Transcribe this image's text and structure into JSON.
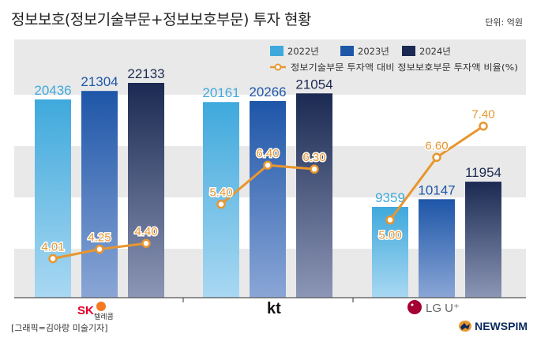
{
  "title": "정보보호(정보기술부문+정보보호부문) 투자 현황",
  "unit": "단위: 억원",
  "credit": "[그래픽=김아랑 미술기자]",
  "brand": "NEWSPIM",
  "colors": {
    "bar_2022": "#3fa9dc",
    "bar_2023": "#1e56a8",
    "bar_2024": "#1b2a52",
    "line": "#e8962f",
    "grid_band": "#e9e9e9"
  },
  "companies": [
    {
      "label": "SK 텔레콤",
      "icon": "sk-telecom-logo"
    },
    {
      "label": "kt",
      "icon": "kt-logo"
    },
    {
      "label": "LG U+",
      "icon": "lg-uplus-logo"
    }
  ],
  "chart_data": {
    "type": "bar",
    "categories": [
      "SK 텔레콤",
      "kt",
      "LG U+"
    ],
    "series": [
      {
        "name": "2022년",
        "values": [
          20436,
          20161,
          9359
        ]
      },
      {
        "name": "2023년",
        "values": [
          21304,
          20266,
          10147
        ]
      },
      {
        "name": "2024년",
        "values": [
          22133,
          21054,
          11954
        ]
      }
    ],
    "line_series": {
      "name": "정보기술부문 투자액 대비 정보보호부문 투자액 비율(%)",
      "values": [
        [
          4.01,
          4.25,
          4.4
        ],
        [
          5.4,
          6.4,
          6.3
        ],
        [
          5.0,
          6.6,
          7.4
        ]
      ],
      "labels": [
        [
          "4.01",
          "4.25",
          "4.40"
        ],
        [
          "5.40",
          "6.40",
          "6.30"
        ],
        [
          "5.00",
          "6.60",
          "7.40"
        ]
      ]
    },
    "legend_position": "top-right",
    "grid": true
  }
}
